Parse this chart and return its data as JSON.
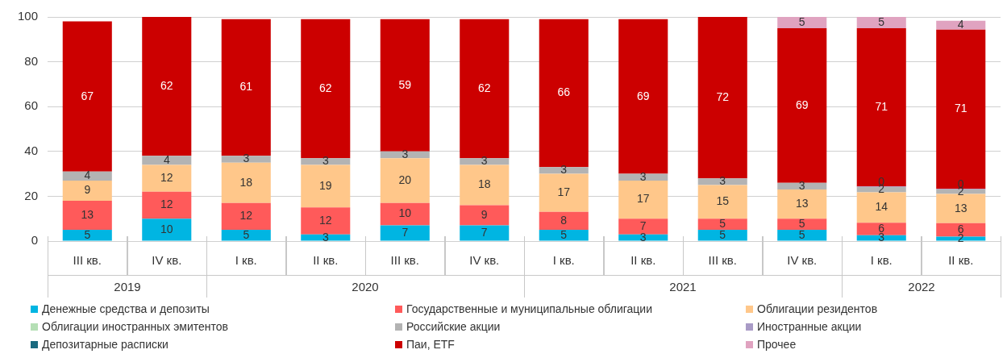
{
  "chart_data": {
    "type": "bar",
    "stacked": true,
    "legend": "bottom",
    "grid": "y",
    "categories": [
      "III кв.",
      "IV кв.",
      "I кв.",
      "II кв.",
      "III кв.",
      "IV кв.",
      "I кв.",
      "II кв.",
      "III кв.",
      "IV кв.",
      "I кв.",
      "II кв."
    ],
    "annotations": [
      "2019",
      "2020",
      "2021",
      "2022"
    ],
    "ylim": [
      0,
      100
    ],
    "yticks": [
      0,
      20,
      40,
      60,
      80,
      100
    ],
    "series": [
      {
        "name": "Денежные средства и депозиты",
        "color": "#00b5e2",
        "values": [
          5,
          10,
          5,
          3,
          7,
          7,
          5,
          3,
          5,
          5,
          2.6,
          2
        ],
        "value_labels": [
          "5",
          "10",
          "5",
          "3",
          "7",
          "7",
          "5",
          "3",
          "5",
          "5",
          "3",
          "2"
        ]
      },
      {
        "name": "Государственные и муниципальные облигации",
        "color": "#ff5a5a",
        "values": [
          13,
          12,
          12,
          12,
          10,
          9,
          8,
          7,
          5,
          5,
          5.6,
          6
        ],
        "value_labels": [
          "13",
          "12",
          "12",
          "12",
          "10",
          "9",
          "8",
          "7",
          "5",
          "5",
          "6",
          "6"
        ]
      },
      {
        "name": "Облигации резидентов",
        "color": "#ffc78a",
        "values": [
          9,
          12,
          18,
          19,
          20,
          18,
          17,
          17,
          15,
          13,
          13.6,
          13
        ],
        "value_labels": [
          "9",
          "12",
          "18",
          "19",
          "20",
          "18",
          "17",
          "17",
          "15",
          "13",
          "14",
          "13"
        ]
      },
      {
        "name": "Облигации иностранных эмитентов",
        "color": "#b5dfb5",
        "values": [
          null,
          null,
          null,
          null,
          null,
          null,
          null,
          null,
          null,
          null,
          null,
          null
        ]
      },
      {
        "name": "Российские акции",
        "color": "#b3b3b3",
        "values": [
          4,
          4,
          3,
          3,
          3,
          3,
          3,
          3,
          3,
          3,
          2.3,
          2
        ],
        "value_labels": [
          "4",
          "4",
          "3",
          "3",
          "3",
          "3",
          "3",
          "3",
          "3",
          "3",
          "2",
          "2"
        ]
      },
      {
        "name": "Иностранные акции",
        "color": "#a99bc6",
        "values": [
          null,
          null,
          null,
          null,
          null,
          null,
          null,
          null,
          null,
          null,
          0.3,
          0.3
        ],
        "value_labels": [
          null,
          null,
          null,
          null,
          null,
          null,
          null,
          null,
          null,
          null,
          "0",
          "0"
        ]
      },
      {
        "name": "Депозитарные расписки",
        "color": "#1a6a7f",
        "values": [
          null,
          null,
          null,
          null,
          null,
          null,
          null,
          null,
          null,
          null,
          null,
          null
        ]
      },
      {
        "name": "Паи, ETF",
        "color": "#cc0000",
        "values": [
          67,
          62,
          61,
          62,
          59,
          62,
          66,
          69,
          72,
          69,
          70.6,
          71
        ],
        "value_labels": [
          "67",
          "62",
          "61",
          "62",
          "59",
          "62",
          "66",
          "69",
          "72",
          "69",
          "71",
          "71"
        ]
      },
      {
        "name": "Прочее",
        "color": "#e0a3c0",
        "values": [
          null,
          null,
          null,
          null,
          null,
          null,
          null,
          null,
          null,
          5,
          5,
          4
        ],
        "value_labels": [
          null,
          null,
          null,
          null,
          null,
          null,
          null,
          null,
          null,
          "5",
          "5",
          "4"
        ]
      }
    ]
  }
}
